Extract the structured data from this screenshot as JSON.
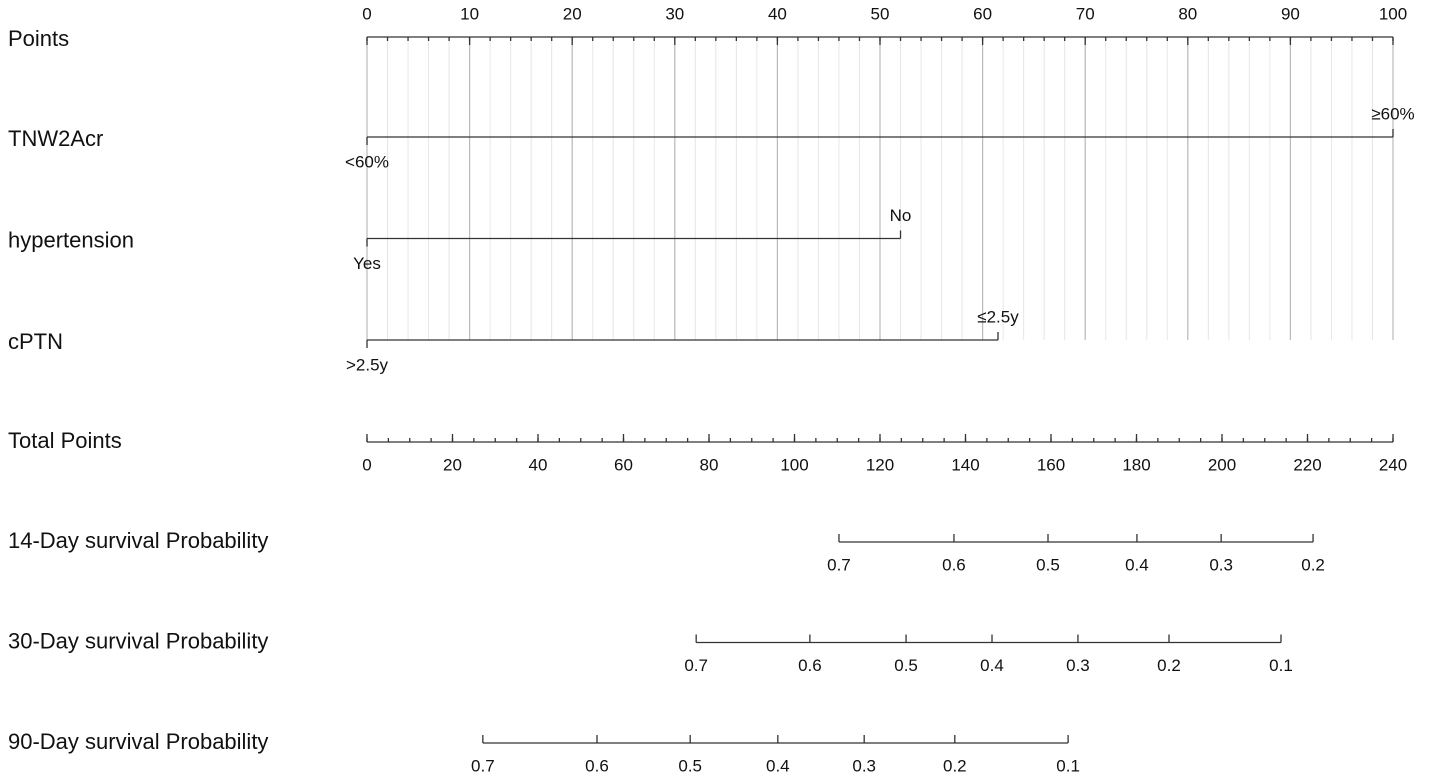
{
  "chart_data": {
    "type": "nomogram",
    "grid": true,
    "points_axis": {
      "label": "Points",
      "xlim": [
        0,
        100
      ],
      "ticks": [
        0,
        10,
        20,
        30,
        40,
        50,
        60,
        70,
        80,
        90,
        100
      ],
      "minor_ticks": [
        0,
        2,
        4,
        6,
        8,
        10,
        12,
        14,
        16,
        18,
        20,
        22,
        24,
        26,
        28,
        30,
        32,
        34,
        36,
        38,
        40,
        42,
        44,
        46,
        48,
        50,
        52,
        54,
        56,
        58,
        60,
        62,
        64,
        66,
        68,
        70,
        72,
        74,
        76,
        78,
        80,
        82,
        84,
        86,
        88,
        90,
        92,
        94,
        96,
        98,
        100
      ]
    },
    "variables": [
      {
        "name": "TNW2Acr",
        "levels": [
          {
            "label": "<60%",
            "points": 0
          },
          {
            "label": "≥60%",
            "points": 100
          }
        ]
      },
      {
        "name": "hypertension",
        "levels": [
          {
            "label": "Yes",
            "points": 0
          },
          {
            "label": "No",
            "points": 52
          }
        ]
      },
      {
        "name": "cPTN",
        "levels": [
          {
            "label": ">2.5y",
            "points": 0
          },
          {
            "label": "≤2.5y",
            "points": 61.5
          }
        ]
      }
    ],
    "total_points_axis": {
      "label": "Total Points",
      "xlim": [
        0,
        240
      ],
      "ticks": [
        0,
        20,
        40,
        60,
        80,
        100,
        120,
        140,
        160,
        180,
        200,
        220,
        240
      ],
      "minor_ticks": [
        0,
        5,
        10,
        15,
        20,
        25,
        30,
        35,
        40,
        45,
        50,
        55,
        60,
        65,
        70,
        75,
        80,
        85,
        90,
        95,
        100,
        105,
        110,
        115,
        120,
        125,
        130,
        135,
        140,
        145,
        150,
        155,
        160,
        165,
        170,
        175,
        180,
        185,
        190,
        195,
        200,
        205,
        210,
        215,
        220,
        225,
        230,
        235,
        240
      ]
    },
    "probability_axes": [
      {
        "label": "14-Day survival Probability",
        "ticks": [
          {
            "value": 0.7,
            "points": 110.4
          },
          {
            "value": 0.6,
            "points": 137.3
          },
          {
            "value": 0.5,
            "points": 159.3
          },
          {
            "value": 0.4,
            "points": 180.1
          },
          {
            "value": 0.3,
            "points": 199.8
          },
          {
            "value": 0.2,
            "points": 221.3
          }
        ]
      },
      {
        "label": "30-Day survival Probability",
        "ticks": [
          {
            "value": 0.7,
            "points": 77.0
          },
          {
            "value": 0.6,
            "points": 103.6
          },
          {
            "value": 0.5,
            "points": 126.1
          },
          {
            "value": 0.4,
            "points": 146.2
          },
          {
            "value": 0.3,
            "points": 166.3
          },
          {
            "value": 0.2,
            "points": 187.6
          },
          {
            "value": 0.1,
            "points": 213.8
          }
        ]
      },
      {
        "label": "90-Day survival Probability",
        "ticks": [
          {
            "value": 0.7,
            "points": 27.1
          },
          {
            "value": 0.6,
            "points": 53.8
          },
          {
            "value": 0.5,
            "points": 75.6
          },
          {
            "value": 0.4,
            "points": 96.1
          },
          {
            "value": 0.3,
            "points": 116.3
          },
          {
            "value": 0.2,
            "points": 137.5
          },
          {
            "value": 0.1,
            "points": 164.0
          }
        ]
      }
    ]
  }
}
